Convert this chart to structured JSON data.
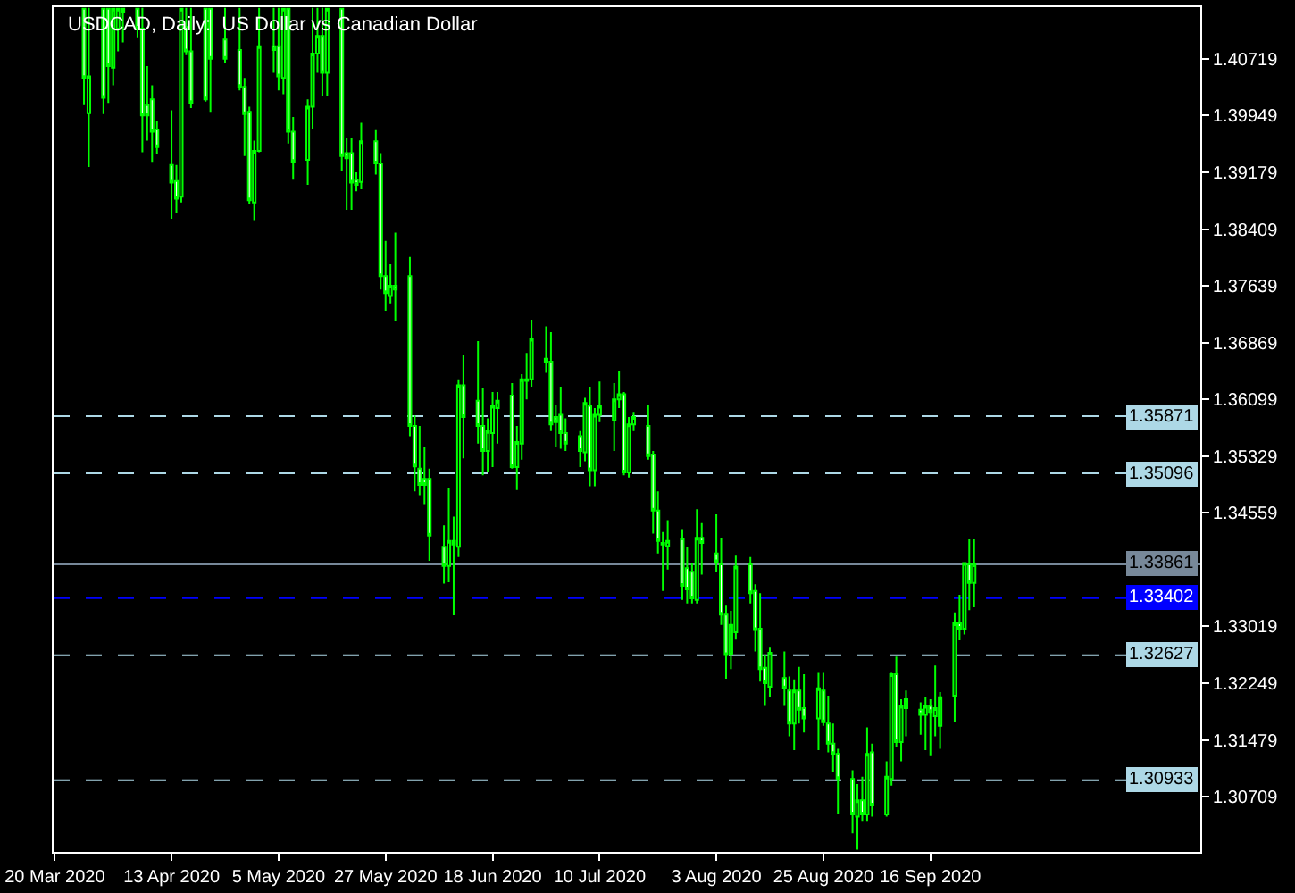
{
  "chart_data": {
    "type": "candlestick",
    "title": "USDCAD, Daily:  US Dollar vs Canadian Dollar",
    "color": "#00ff00",
    "x": [
      "2020-03-26",
      "2020-03-27",
      "2020-03-30",
      "2020-03-31",
      "2020-04-01",
      "2020-04-02",
      "2020-04-03",
      "2020-04-06",
      "2020-04-07",
      "2020-04-08",
      "2020-04-09",
      "2020-04-10",
      "2020-04-13",
      "2020-04-14",
      "2020-04-15",
      "2020-04-16",
      "2020-04-17",
      "2020-04-20",
      "2020-04-21",
      "2020-04-24",
      "2020-04-27",
      "2020-04-28",
      "2020-04-29",
      "2020-04-30",
      "2020-05-01",
      "2020-05-04",
      "2020-05-05",
      "2020-05-06",
      "2020-05-07",
      "2020-05-08",
      "2020-05-11",
      "2020-05-12",
      "2020-05-13",
      "2020-05-14",
      "2020-05-15",
      "2020-05-18",
      "2020-05-19",
      "2020-05-20",
      "2020-05-21",
      "2020-05-22",
      "2020-05-25",
      "2020-05-26",
      "2020-05-27",
      "2020-05-28",
      "2020-05-29",
      "2020-06-01",
      "2020-06-02",
      "2020-06-03",
      "2020-06-04",
      "2020-06-05",
      "2020-06-08",
      "2020-06-09",
      "2020-06-10",
      "2020-06-11",
      "2020-06-12",
      "2020-06-15",
      "2020-06-16",
      "2020-06-17",
      "2020-06-18",
      "2020-06-19",
      "2020-06-22",
      "2020-06-23",
      "2020-06-24",
      "2020-06-25",
      "2020-06-26",
      "2020-06-29",
      "2020-06-30",
      "2020-07-01",
      "2020-07-02",
      "2020-07-03",
      "2020-07-06",
      "2020-07-07",
      "2020-07-08",
      "2020-07-09",
      "2020-07-10",
      "2020-07-13",
      "2020-07-14",
      "2020-07-15",
      "2020-07-16",
      "2020-07-17",
      "2020-07-20",
      "2020-07-21",
      "2020-07-22",
      "2020-07-23",
      "2020-07-24",
      "2020-07-27",
      "2020-07-28",
      "2020-07-29",
      "2020-07-30",
      "2020-07-31",
      "2020-08-03",
      "2020-08-04",
      "2020-08-05",
      "2020-08-06",
      "2020-08-07",
      "2020-08-10",
      "2020-08-11",
      "2020-08-12",
      "2020-08-13",
      "2020-08-14",
      "2020-08-17",
      "2020-08-18",
      "2020-08-19",
      "2020-08-20",
      "2020-08-21",
      "2020-08-24",
      "2020-08-25",
      "2020-08-26",
      "2020-08-27",
      "2020-08-28",
      "2020-08-31",
      "2020-09-01",
      "2020-09-02",
      "2020-09-03",
      "2020-09-04",
      "2020-09-07",
      "2020-09-08",
      "2020-09-09",
      "2020-09-10",
      "2020-09-11",
      "2020-09-14",
      "2020-09-15",
      "2020-09-16",
      "2020-09-17",
      "2020-09-18",
      "2020-09-21",
      "2020-09-22",
      "2020-09-23",
      "2020-09-24",
      "2020-09-25"
    ],
    "ohlc": [
      [
        1.414,
        1.4141,
        1.4009,
        1.4046
      ],
      [
        1.3998,
        1.4141,
        1.3925,
        1.4048
      ],
      [
        1.414,
        1.4141,
        1.3997,
        1.4019
      ],
      [
        1.414,
        1.4141,
        1.4012,
        1.4062
      ],
      [
        1.406,
        1.4141,
        1.4036,
        1.414
      ],
      [
        1.4113,
        1.4141,
        1.4082,
        1.414
      ],
      [
        1.414,
        1.4141,
        1.4094,
        1.4135
      ],
      [
        1.414,
        1.4141,
        1.4101,
        1.4113
      ],
      [
        1.4113,
        1.4141,
        1.3945,
        1.3995
      ],
      [
        1.4009,
        1.4062,
        1.3961,
        1.3995
      ],
      [
        1.4017,
        1.4036,
        1.3932,
        1.3973
      ],
      [
        1.3976,
        1.3988,
        1.3942,
        1.3952
      ],
      [
        1.3928,
        1.4002,
        1.3855,
        1.3904
      ],
      [
        1.3906,
        1.3928,
        1.3863,
        1.3882
      ],
      [
        1.3885,
        1.4141,
        1.3877,
        1.414
      ],
      [
        1.4115,
        1.4141,
        1.4077,
        1.4082
      ],
      [
        1.4082,
        1.4141,
        1.4005,
        1.4012
      ],
      [
        1.414,
        1.4141,
        1.4014,
        1.4017
      ],
      [
        1.414,
        1.4141,
        1.4,
        1.4072
      ],
      [
        1.4098,
        1.4141,
        1.4067,
        1.4072
      ],
      [
        1.4084,
        1.4141,
        1.4029,
        1.4034
      ],
      [
        1.4034,
        1.4046,
        1.394,
        1.3997
      ],
      [
        1.4,
        1.4007,
        1.3875,
        1.388
      ],
      [
        1.3877,
        1.3961,
        1.3853,
        1.3947
      ],
      [
        1.3947,
        1.4141,
        1.3945,
        1.4089
      ],
      [
        1.4089,
        1.4141,
        1.4053,
        1.4084
      ],
      [
        1.4089,
        1.4141,
        1.4029,
        1.4048
      ],
      [
        1.4046,
        1.4141,
        1.4024,
        1.414
      ],
      [
        1.414,
        1.4141,
        1.3957,
        1.3973
      ],
      [
        1.3973,
        1.3993,
        1.3908,
        1.3932
      ],
      [
        1.3935,
        1.4017,
        1.3901,
        1.4007
      ],
      [
        1.4007,
        1.4141,
        1.3976,
        1.4079
      ],
      [
        1.4079,
        1.4141,
        1.4053,
        1.4103
      ],
      [
        1.4103,
        1.4141,
        1.4021,
        1.4053
      ],
      [
        1.4053,
        1.4141,
        1.4021,
        1.414
      ],
      [
        1.414,
        1.4141,
        1.392,
        1.394
      ],
      [
        1.3944,
        1.3964,
        1.3867,
        1.3937
      ],
      [
        1.3944,
        1.3964,
        1.3867,
        1.3904
      ],
      [
        1.3908,
        1.3918,
        1.3892,
        1.3901
      ],
      [
        1.3905,
        1.3985,
        1.3895,
        1.396
      ],
      [
        1.396,
        1.3975,
        1.3915,
        1.393
      ],
      [
        1.393,
        1.3944,
        1.3759,
        1.3777
      ],
      [
        1.3777,
        1.3825,
        1.373,
        1.3754
      ],
      [
        1.375,
        1.3793,
        1.374,
        1.3764
      ],
      [
        1.3764,
        1.3836,
        1.3716,
        1.3759
      ],
      [
        1.3777,
        1.3803,
        1.356,
        1.3574
      ],
      [
        1.3574,
        1.3588,
        1.3485,
        1.3519
      ],
      [
        1.3516,
        1.3574,
        1.348,
        1.3494
      ],
      [
        1.3502,
        1.3545,
        1.3468,
        1.3494
      ],
      [
        1.3502,
        1.3516,
        1.3391,
        1.3425
      ],
      [
        1.341,
        1.3439,
        1.336,
        1.3384
      ],
      [
        1.3384,
        1.349,
        1.3362,
        1.3418
      ],
      [
        1.3418,
        1.3451,
        1.3317,
        1.3413
      ],
      [
        1.341,
        1.3637,
        1.3396,
        1.3629
      ],
      [
        1.3629,
        1.367,
        1.353,
        1.3586
      ],
      [
        1.3608,
        1.3689,
        1.355,
        1.3574
      ],
      [
        1.3574,
        1.3625,
        1.3507,
        1.354
      ],
      [
        1.354,
        1.3584,
        1.3511,
        1.3567
      ],
      [
        1.3564,
        1.362,
        1.3518,
        1.3601
      ],
      [
        1.3598,
        1.362,
        1.355,
        1.3608
      ],
      [
        1.3615,
        1.3632,
        1.3516,
        1.3518
      ],
      [
        1.3518,
        1.3574,
        1.3487,
        1.3552
      ],
      [
        1.355,
        1.3644,
        1.3528,
        1.3637
      ],
      [
        1.3637,
        1.3673,
        1.361,
        1.3635
      ],
      [
        1.3637,
        1.3718,
        1.3627,
        1.3692
      ],
      [
        1.3665,
        1.3709,
        1.3646,
        1.3661
      ],
      [
        1.3661,
        1.3701,
        1.3567,
        1.3576
      ],
      [
        1.3586,
        1.3603,
        1.3545,
        1.3579
      ],
      [
        1.3589,
        1.3627,
        1.3543,
        1.3564
      ],
      [
        1.3564,
        1.3584,
        1.354,
        1.355
      ],
      [
        1.356,
        1.3567,
        1.3518,
        1.354
      ],
      [
        1.3538,
        1.3612,
        1.3526,
        1.3605
      ],
      [
        1.3601,
        1.3627,
        1.3492,
        1.3514
      ],
      [
        1.3514,
        1.3598,
        1.3492,
        1.3589
      ],
      [
        1.3589,
        1.3634,
        1.3579,
        1.3601
      ],
      [
        1.3581,
        1.3632,
        1.354,
        1.361
      ],
      [
        1.361,
        1.3649,
        1.3598,
        1.3617
      ],
      [
        1.3617,
        1.362,
        1.3507,
        1.3511
      ],
      [
        1.3511,
        1.3586,
        1.3504,
        1.3576
      ],
      [
        1.3576,
        1.3593,
        1.3567,
        1.3586
      ],
      [
        1.3574,
        1.3603,
        1.3528,
        1.3533
      ],
      [
        1.3535,
        1.354,
        1.3428,
        1.3459
      ],
      [
        1.3459,
        1.3485,
        1.3401,
        1.3418
      ],
      [
        1.3415,
        1.343,
        1.335,
        1.3413
      ],
      [
        1.3411,
        1.3446,
        1.3379,
        1.3418
      ],
      [
        1.342,
        1.3434,
        1.3338,
        1.3357
      ],
      [
        1.3381,
        1.341,
        1.3333,
        1.3352
      ],
      [
        1.3376,
        1.3388,
        1.3333,
        1.334
      ],
      [
        1.3338,
        1.3461,
        1.3333,
        1.3422
      ],
      [
        1.3422,
        1.3442,
        1.3372,
        1.3415
      ],
      [
        1.3401,
        1.3454,
        1.3376,
        1.3389
      ],
      [
        1.3386,
        1.3422,
        1.3304,
        1.3318
      ],
      [
        1.3318,
        1.333,
        1.3231,
        1.3263
      ],
      [
        1.3265,
        1.3323,
        1.3244,
        1.3304
      ],
      [
        1.3294,
        1.3398,
        1.3284,
        1.3383
      ],
      [
        1.3386,
        1.3396,
        1.3333,
        1.3347
      ],
      [
        1.335,
        1.3359,
        1.3268,
        1.3297
      ],
      [
        1.3299,
        1.3347,
        1.3227,
        1.3244
      ],
      [
        1.3246,
        1.3263,
        1.3194,
        1.3225
      ],
      [
        1.322,
        1.3273,
        1.3206,
        1.3266
      ],
      [
        1.3232,
        1.3268,
        1.3194,
        1.3218
      ],
      [
        1.3215,
        1.3234,
        1.3153,
        1.317
      ],
      [
        1.317,
        1.323,
        1.3134,
        1.3215
      ],
      [
        1.3215,
        1.3247,
        1.317,
        1.3189
      ],
      [
        1.3191,
        1.3237,
        1.3158,
        1.3177
      ],
      [
        1.3177,
        1.3239,
        1.3134,
        1.3218
      ],
      [
        1.3215,
        1.3239,
        1.3167,
        1.3172
      ],
      [
        1.317,
        1.3208,
        1.3131,
        1.3143
      ],
      [
        1.3143,
        1.317,
        1.3105,
        1.3129
      ],
      [
        1.3129,
        1.3136,
        1.3047,
        1.3095
      ],
      [
        1.3095,
        1.3107,
        1.3021,
        1.3047
      ],
      [
        1.3044,
        1.3088,
        1.2999,
        1.3066
      ],
      [
        1.3066,
        1.3098,
        1.3038,
        1.3047
      ],
      [
        1.3047,
        1.3165,
        1.3038,
        1.3129
      ],
      [
        1.3131,
        1.3143,
        1.3044,
        1.3059
      ],
      [
        1.3047,
        1.3119,
        1.3044,
        1.3098
      ],
      [
        1.3095,
        1.3239,
        1.3086,
        1.3237
      ],
      [
        1.3237,
        1.3261,
        1.3138,
        1.3145
      ],
      [
        1.3145,
        1.3203,
        1.3119,
        1.3194
      ],
      [
        1.3191,
        1.3215,
        1.3153,
        1.3203
      ],
      [
        1.3189,
        1.3199,
        1.3155,
        1.3182
      ],
      [
        1.3182,
        1.3206,
        1.3134,
        1.3194
      ],
      [
        1.3194,
        1.3203,
        1.3126,
        1.3186
      ],
      [
        1.318,
        1.3249,
        1.3153,
        1.3191
      ],
      [
        1.3167,
        1.3213,
        1.3136,
        1.3206
      ],
      [
        1.3208,
        1.3321,
        1.3172,
        1.3306
      ],
      [
        1.3306,
        1.3345,
        1.3283,
        1.3299
      ],
      [
        1.3299,
        1.3389,
        1.3291,
        1.3388
      ],
      [
        1.3386,
        1.342,
        1.3324,
        1.3361
      ],
      [
        1.3361,
        1.342,
        1.3328,
        1.3386
      ]
    ],
    "xlim": [
      "2020-03-19T18:00",
      "2020-11-10T12:00"
    ],
    "xticks": [
      {
        "value": "2020-03-20",
        "label": "20 Mar 2020"
      },
      {
        "value": "2020-04-13",
        "label": "13 Apr 2020"
      },
      {
        "value": "2020-05-05",
        "label": "5 May 2020"
      },
      {
        "value": "2020-05-27",
        "label": "27 May 2020"
      },
      {
        "value": "2020-06-18",
        "label": "18 Jun 2020"
      },
      {
        "value": "2020-07-10",
        "label": "10 Jul 2020"
      },
      {
        "value": "2020-08-03",
        "label": "3 Aug 2020"
      },
      {
        "value": "2020-08-25",
        "label": "25 Aug 2020"
      },
      {
        "value": "2020-09-16",
        "label": "16 Sep 2020"
      }
    ],
    "ylim": [
      1.2996,
      1.4142
    ],
    "yticks": [
      1.30709,
      1.31479,
      1.32249,
      1.33019,
      1.34559,
      1.35329,
      1.36099,
      1.36869,
      1.37639,
      1.38409,
      1.39179,
      1.39949,
      1.40719
    ],
    "ref_lines": [
      {
        "axis": "y",
        "value": 1.35871,
        "label": "1.35871",
        "color": "#add8e6",
        "line_style": "dashed"
      },
      {
        "axis": "y",
        "value": 1.35096,
        "label": "1.35096",
        "color": "#add8e6",
        "line_style": "dashed"
      },
      {
        "axis": "y",
        "value": 1.33861,
        "label": "1.33861",
        "color": "#778899",
        "line_style": "solid"
      },
      {
        "axis": "y",
        "value": 1.33402,
        "label": "1.33402",
        "color": "#0000ff",
        "line_style": "dashed"
      },
      {
        "axis": "y",
        "value": 1.32627,
        "label": "1.32627",
        "color": "#add8e6",
        "line_style": "dashed"
      },
      {
        "axis": "y",
        "value": 1.30933,
        "label": "1.30933",
        "color": "#add8e6",
        "line_style": "dashed"
      }
    ],
    "grid": false
  }
}
